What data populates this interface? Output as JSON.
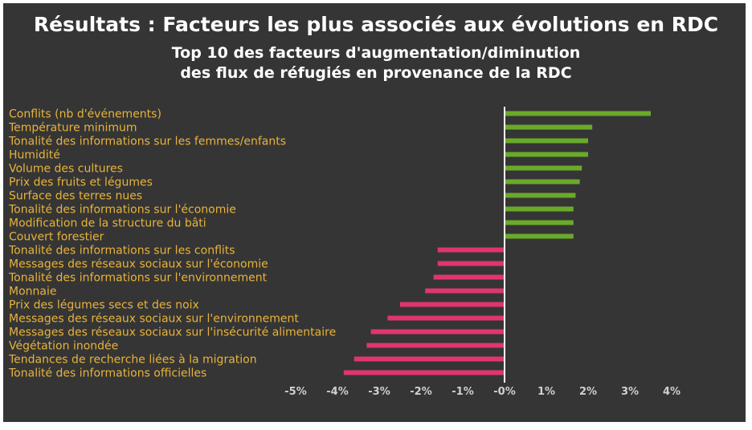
{
  "header": {
    "title": "Résultats : Facteurs les plus associés aux évolutions en RDC",
    "subtitle_line1": "Top 10 des facteurs d'augmentation/diminution",
    "subtitle_line2": "des flux de réfugiés en provenance de la RDC"
  },
  "colors": {
    "background": "#353535",
    "positive": "#6aaa2a",
    "negative": "#e0356e",
    "label": "#e8b33a",
    "tick": "#cfcfcf",
    "axis": "#ffffff"
  },
  "chart_data": {
    "type": "bar",
    "orientation": "horizontal",
    "title": "Top 10 des facteurs d'augmentation/diminution des flux de réfugiés en provenance de la RDC",
    "xlabel": "",
    "ylabel": "",
    "xlim": [
      -5,
      4
    ],
    "xticks": [
      "-5%",
      "-4%",
      "-3%",
      "-2%",
      "-1%",
      "-0%",
      "1%",
      "2%",
      "3%",
      "4%"
    ],
    "xtick_values": [
      -5,
      -4,
      -3,
      -2,
      -1,
      0,
      1,
      2,
      3,
      4
    ],
    "categories": [
      "Conflits (nb d'événements)",
      "Température minimum",
      "Tonalité des informations sur les femmes/enfants",
      "Humidité",
      "Volume des cultures",
      "Prix des fruits et légumes",
      "Surface des terres nues",
      "Tonalité des informations sur l'économie",
      "Modification de la structure du bâti",
      "Couvert forestier",
      "Tonalité des informations sur les conflits",
      "Messages des réseaux sociaux sur l'économie",
      "Tonalité des informations sur l'environnement",
      "Monnaie",
      "Prix des légumes secs et des noix",
      "Messages des réseaux sociaux sur l'environnement",
      "Messages des réseaux sociaux sur l'insécurité alimentaire",
      "Végétation inondée",
      "Tendances de recherche liées à la migration",
      "Tonalité des informations officielles"
    ],
    "values": [
      3.5,
      2.1,
      2.0,
      2.0,
      1.85,
      1.8,
      1.7,
      1.65,
      1.65,
      1.65,
      -1.6,
      -1.6,
      -1.7,
      -1.9,
      -2.5,
      -2.8,
      -3.2,
      -3.3,
      -3.6,
      -3.85
    ],
    "grid": false,
    "legend": "none"
  }
}
